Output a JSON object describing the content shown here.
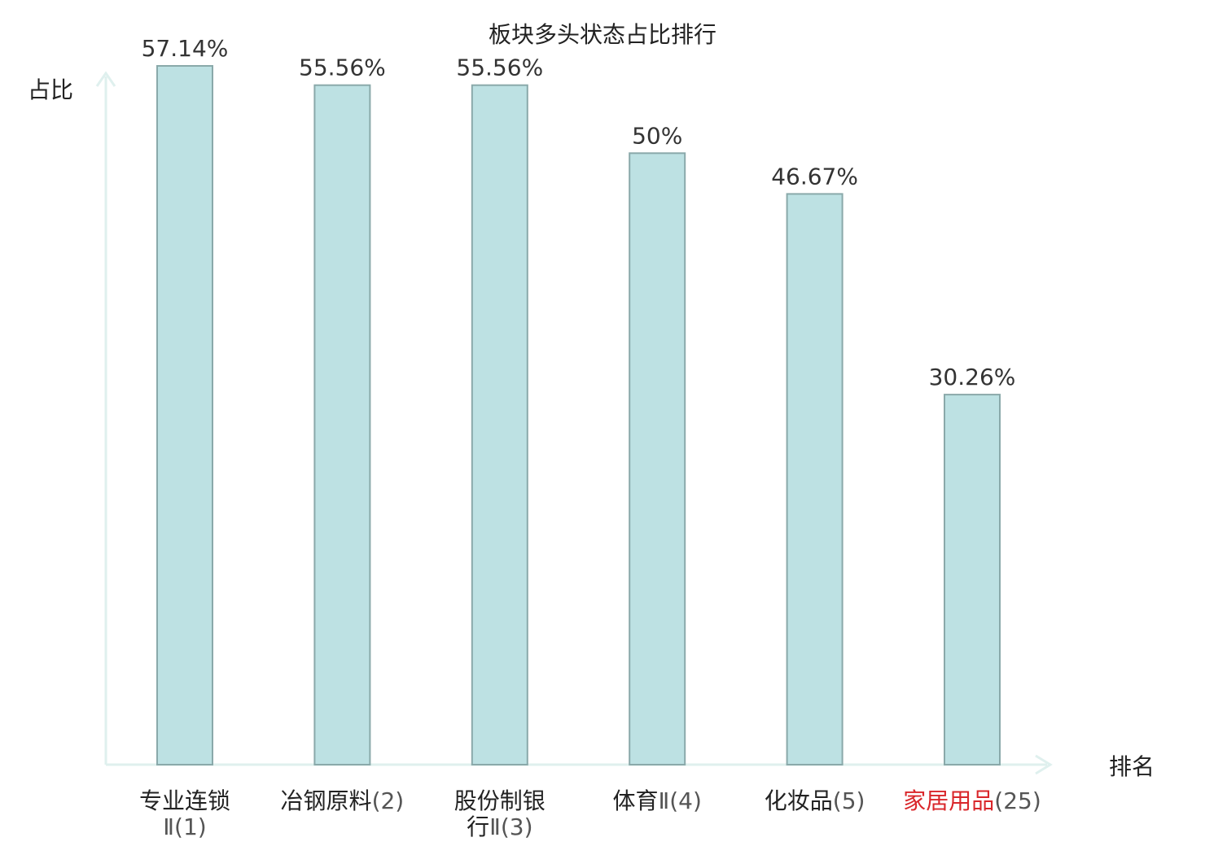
{
  "chart_data": {
    "type": "bar",
    "title": "板块多头状态占比排行",
    "ylabel": "占比",
    "xlabel": "排名",
    "ylim": [
      0,
      60
    ],
    "grid": false,
    "categories": [
      {
        "lines": [
          {
            "name": "专业连锁",
            "rank": ""
          },
          {
            "name": "",
            "rank": "Ⅱ(1)"
          }
        ],
        "highlight": false
      },
      {
        "lines": [
          {
            "name": "冶钢原料",
            "rank": "(2)"
          }
        ],
        "highlight": false
      },
      {
        "lines": [
          {
            "name": "股份制银",
            "rank": ""
          },
          {
            "name": "行",
            "rank": "Ⅱ(3)"
          }
        ],
        "highlight": false
      },
      {
        "lines": [
          {
            "name": "体育",
            "rank": "Ⅱ(4)"
          }
        ],
        "highlight": false
      },
      {
        "lines": [
          {
            "name": "化妆品",
            "rank": "(5)"
          }
        ],
        "highlight": false
      },
      {
        "lines": [
          {
            "name": "家居用品",
            "rank": "(25)"
          }
        ],
        "highlight": true
      }
    ],
    "values": [
      57.14,
      55.56,
      55.56,
      50,
      46.67,
      30.26
    ],
    "value_labels": [
      "57.14%",
      "55.56%",
      "55.56%",
      "50%",
      "46.67%",
      "30.26%"
    ],
    "colors": {
      "bar_fill": "#bde1e3",
      "bar_stroke": "#8aa9aa",
      "axis": "#dff0ee",
      "highlight": "#d9262a"
    }
  }
}
